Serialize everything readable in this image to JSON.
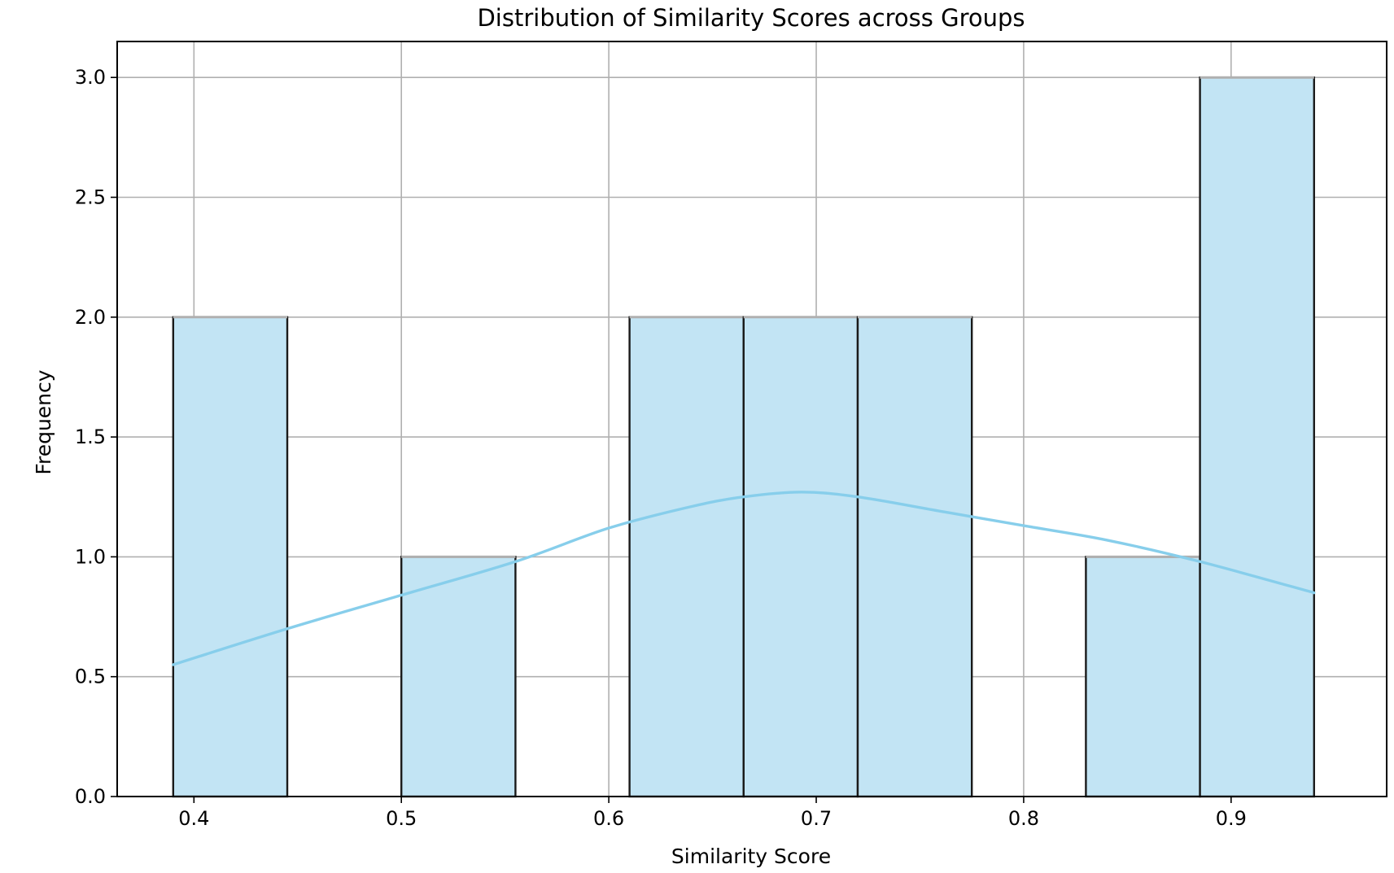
{
  "chart_data": {
    "type": "bar",
    "title": "Distribution of Similarity Scores across Groups",
    "xlabel": "Similarity Score",
    "ylabel": "Frequency",
    "xlim": [
      0.363,
      0.975
    ],
    "ylim": [
      0,
      3.15
    ],
    "xticks": [
      0.4,
      0.5,
      0.6,
      0.7,
      0.8,
      0.9
    ],
    "xtick_labels": [
      "0.4",
      "0.5",
      "0.6",
      "0.7",
      "0.8",
      "0.9"
    ],
    "yticks": [
      0.0,
      0.5,
      1.0,
      1.5,
      2.0,
      2.5,
      3.0
    ],
    "ytick_labels": [
      "0.0",
      "0.5",
      "1.0",
      "1.5",
      "2.0",
      "2.5",
      "3.0"
    ],
    "grid": true,
    "bins": [
      {
        "x0": 0.39,
        "x1": 0.445,
        "count": 2
      },
      {
        "x0": 0.445,
        "x1": 0.5,
        "count": 0
      },
      {
        "x0": 0.5,
        "x1": 0.555,
        "count": 1
      },
      {
        "x0": 0.555,
        "x1": 0.61,
        "count": 0
      },
      {
        "x0": 0.61,
        "x1": 0.665,
        "count": 2
      },
      {
        "x0": 0.665,
        "x1": 0.72,
        "count": 2
      },
      {
        "x0": 0.72,
        "x1": 0.775,
        "count": 2
      },
      {
        "x0": 0.775,
        "x1": 0.83,
        "count": 0
      },
      {
        "x0": 0.83,
        "x1": 0.885,
        "count": 1
      },
      {
        "x0": 0.885,
        "x1": 0.94,
        "count": 3
      }
    ],
    "kde": [
      [
        0.39,
        0.55
      ],
      [
        0.445,
        0.7
      ],
      [
        0.5,
        0.84
      ],
      [
        0.555,
        0.98
      ],
      [
        0.6,
        1.12
      ],
      [
        0.64,
        1.21
      ],
      [
        0.665,
        1.25
      ],
      [
        0.693,
        1.27
      ],
      [
        0.72,
        1.25
      ],
      [
        0.76,
        1.19
      ],
      [
        0.8,
        1.13
      ],
      [
        0.84,
        1.07
      ],
      [
        0.885,
        0.98
      ],
      [
        0.94,
        0.85
      ]
    ],
    "colors": {
      "bar_fill": "#c2e4f4",
      "bar_edge": "#1a1a1a",
      "kde_line": "#87ceeb",
      "grid": "#b0b0b0",
      "axis": "#000000"
    }
  }
}
